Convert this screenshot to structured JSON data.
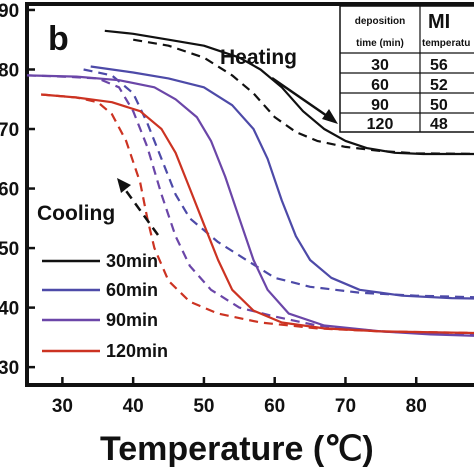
{
  "chart_data": {
    "type": "line",
    "panel_label": "b",
    "xlabel": "Temperature (℃)",
    "ylabel": "",
    "xlim": [
      25,
      90
    ],
    "ylim": [
      27,
      91
    ],
    "x_ticks": [
      "30",
      "40",
      "50",
      "60",
      "70",
      "80"
    ],
    "y_ticks": [
      "30",
      "40",
      "50",
      "60",
      "70",
      "80",
      "90"
    ],
    "grid": false,
    "legend_position": "bottom-left",
    "annotations": [
      "Heating",
      "Cooling"
    ],
    "series": [
      {
        "name": "30min",
        "color": "#111111",
        "heating": [
          [
            36,
            86.5
          ],
          [
            40,
            86
          ],
          [
            45,
            85
          ],
          [
            50,
            84
          ],
          [
            55,
            82
          ],
          [
            58,
            80
          ],
          [
            61,
            77
          ],
          [
            64,
            73
          ],
          [
            67,
            70
          ],
          [
            70,
            68
          ],
          [
            73,
            66.8
          ],
          [
            77,
            66
          ],
          [
            81,
            65.8
          ],
          [
            85,
            65.8
          ],
          [
            90,
            65.8
          ]
        ],
        "cooling": [
          [
            40,
            85
          ],
          [
            45,
            84
          ],
          [
            50,
            82
          ],
          [
            54,
            79
          ],
          [
            57,
            76
          ],
          [
            60,
            72
          ],
          [
            63,
            69.5
          ],
          [
            66,
            68
          ],
          [
            70,
            67
          ],
          [
            75,
            66.3
          ],
          [
            80,
            65.9
          ],
          [
            90,
            65.8
          ]
        ]
      },
      {
        "name": "60min",
        "color": "#4d4aa8",
        "heating": [
          [
            34,
            80.5
          ],
          [
            40,
            79.5
          ],
          [
            45,
            78.5
          ],
          [
            50,
            77
          ],
          [
            54,
            74
          ],
          [
            57,
            70
          ],
          [
            59,
            65
          ],
          [
            61,
            58
          ],
          [
            63,
            52
          ],
          [
            65,
            48
          ],
          [
            68,
            45
          ],
          [
            72,
            43
          ],
          [
            78,
            42
          ],
          [
            85,
            41.6
          ],
          [
            90,
            41.5
          ]
        ],
        "cooling": [
          [
            33,
            80
          ],
          [
            37,
            79
          ],
          [
            40,
            76
          ],
          [
            42,
            71
          ],
          [
            44,
            65
          ],
          [
            46,
            59
          ],
          [
            48,
            55
          ],
          [
            52,
            51
          ],
          [
            56,
            48
          ],
          [
            60,
            45
          ],
          [
            65,
            43.5
          ],
          [
            72,
            42.5
          ],
          [
            80,
            42
          ],
          [
            90,
            41.7
          ]
        ]
      },
      {
        "name": "90min",
        "color": "#6b46a8",
        "heating": [
          [
            25,
            79
          ],
          [
            32,
            78.8
          ],
          [
            38,
            78.2
          ],
          [
            43,
            77
          ],
          [
            46,
            75
          ],
          [
            49,
            72
          ],
          [
            51,
            68
          ],
          [
            53,
            62
          ],
          [
            55,
            55
          ],
          [
            57,
            48
          ],
          [
            59,
            43
          ],
          [
            62,
            39
          ],
          [
            67,
            37
          ],
          [
            75,
            36
          ],
          [
            82,
            35.5
          ],
          [
            90,
            35.2
          ]
        ],
        "cooling": [
          [
            25,
            79
          ],
          [
            30,
            78.8
          ],
          [
            35,
            78.5
          ],
          [
            38,
            77
          ],
          [
            40,
            73
          ],
          [
            42,
            67
          ],
          [
            44,
            59
          ],
          [
            46,
            52
          ],
          [
            48,
            47
          ],
          [
            51,
            43
          ],
          [
            55,
            40
          ],
          [
            60,
            38.5
          ],
          [
            66,
            37
          ],
          [
            75,
            36
          ],
          [
            85,
            35.5
          ],
          [
            90,
            35.3
          ]
        ]
      },
      {
        "name": "120min",
        "color": "#cc3322",
        "heating": [
          [
            27,
            75.8
          ],
          [
            32,
            75.3
          ],
          [
            37,
            74.5
          ],
          [
            41,
            73
          ],
          [
            44,
            70
          ],
          [
            46,
            66
          ],
          [
            48,
            60
          ],
          [
            50,
            54
          ],
          [
            52,
            48
          ],
          [
            54,
            43
          ],
          [
            57,
            39.5
          ],
          [
            61,
            37.5
          ],
          [
            67,
            36.5
          ],
          [
            75,
            36
          ],
          [
            85,
            35.8
          ],
          [
            90,
            35.7
          ]
        ],
        "cooling": [
          [
            27,
            75.8
          ],
          [
            32,
            75.3
          ],
          [
            35,
            74.5
          ],
          [
            37,
            72.5
          ],
          [
            39,
            68
          ],
          [
            41,
            61
          ],
          [
            42,
            55
          ],
          [
            43,
            50
          ],
          [
            45,
            44.5
          ],
          [
            48,
            41
          ],
          [
            52,
            39
          ],
          [
            58,
            37.5
          ],
          [
            66,
            36.5
          ],
          [
            75,
            36
          ],
          [
            85,
            35.8
          ],
          [
            90,
            35.7
          ]
        ]
      }
    ],
    "table": {
      "header": [
        "deposition time (min)",
        "MI temperatu"
      ],
      "header_lines": [
        [
          "deposition",
          "time (min)"
        ],
        [
          "MI",
          "temperatu"
        ]
      ],
      "rows": [
        [
          "30",
          "56"
        ],
        [
          "60",
          "52"
        ],
        [
          "90",
          "50"
        ],
        [
          "120",
          "48"
        ]
      ]
    }
  }
}
